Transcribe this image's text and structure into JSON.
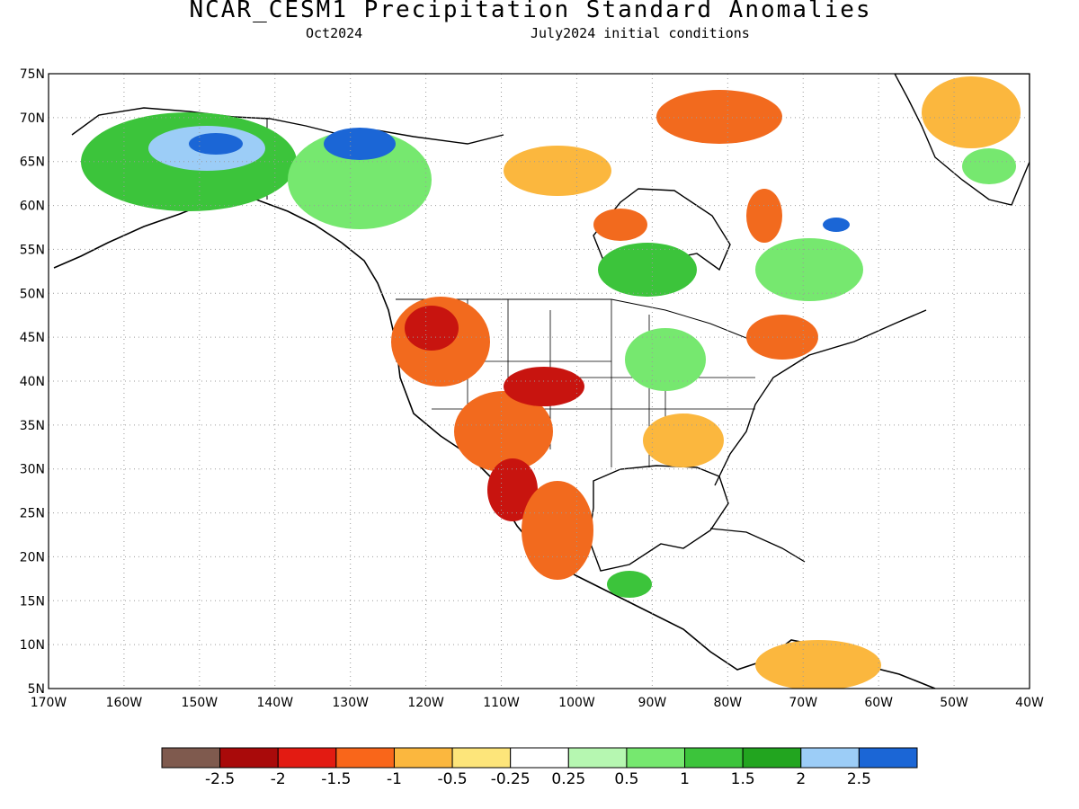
{
  "title": "NCAR_CESM1 Precipitation Standard Anomalies",
  "subtitle_left": "Oct2024",
  "subtitle_right": "July2024 initial conditions",
  "map": {
    "lat_labels": [
      "75N",
      "70N",
      "65N",
      "60N",
      "55N",
      "50N",
      "45N",
      "40N",
      "35N",
      "30N",
      "25N",
      "20N",
      "15N",
      "10N",
      "5N"
    ],
    "lon_labels": [
      "170W",
      "160W",
      "150W",
      "140W",
      "130W",
      "120W",
      "110W",
      "100W",
      "90W",
      "80W",
      "70W",
      "60W",
      "50W",
      "40W"
    ],
    "grid": "dotted",
    "region": "North America"
  },
  "colorbar": {
    "labels": [
      "-2.5",
      "-2",
      "-1.5",
      "-1",
      "-0.5",
      "-0.25",
      "0.25",
      "0.5",
      "1",
      "1.5",
      "2",
      "2.5"
    ],
    "colors": [
      "#7f5a4e",
      "#a90a0a",
      "#e31b12",
      "#f9661a",
      "#fbb73e",
      "#fde57a",
      "#ffffff",
      "#b6f7b1",
      "#76e86f",
      "#3cc43b",
      "#22a51f",
      "#9ccdf7",
      "#1b66d6"
    ]
  },
  "anomaly_colors": {
    "strong_dry": "#c8140f",
    "dry": "#f26a1e",
    "moderate_dry": "#fbb73e",
    "slight_dry": "#fde57a",
    "slight_wet": "#b6f7b1",
    "wet": "#76e86f",
    "moderate_wet": "#3cc43b",
    "very_wet": "#9ccdf7",
    "extreme_wet": "#1b66d6"
  }
}
